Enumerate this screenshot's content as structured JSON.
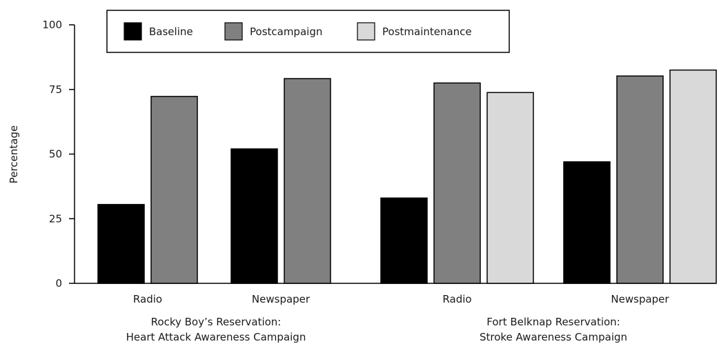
{
  "chart_data": {
    "type": "bar",
    "ylabel": "Percentage",
    "ylim": [
      0,
      100
    ],
    "yticks": [
      0,
      25,
      50,
      75,
      100
    ],
    "grid": false,
    "legend_position": "top-left",
    "groups": [
      {
        "label_line1": "Rocky Boy’s Reservation:",
        "label_line2": "Heart Attack Awareness Campaign",
        "categories": [
          "Radio",
          "Newspaper"
        ]
      },
      {
        "label_line1": "Fort Belknap Reservation:",
        "label_line2": "Stroke Awareness Campaign",
        "categories": [
          "Radio",
          "Newspaper"
        ]
      }
    ],
    "series": [
      {
        "name": "Baseline",
        "color": "#000000",
        "values": [
          [
            30.5,
            52
          ],
          [
            33,
            47
          ]
        ]
      },
      {
        "name": "Postcampaign",
        "color": "#808080",
        "values": [
          [
            72.3,
            79.2
          ],
          [
            77.5,
            80.2
          ]
        ]
      },
      {
        "name": "Postmaintenance",
        "color": "#d9d9d9",
        "values": [
          [
            null,
            null
          ],
          [
            73.8,
            82.5
          ]
        ]
      }
    ]
  }
}
